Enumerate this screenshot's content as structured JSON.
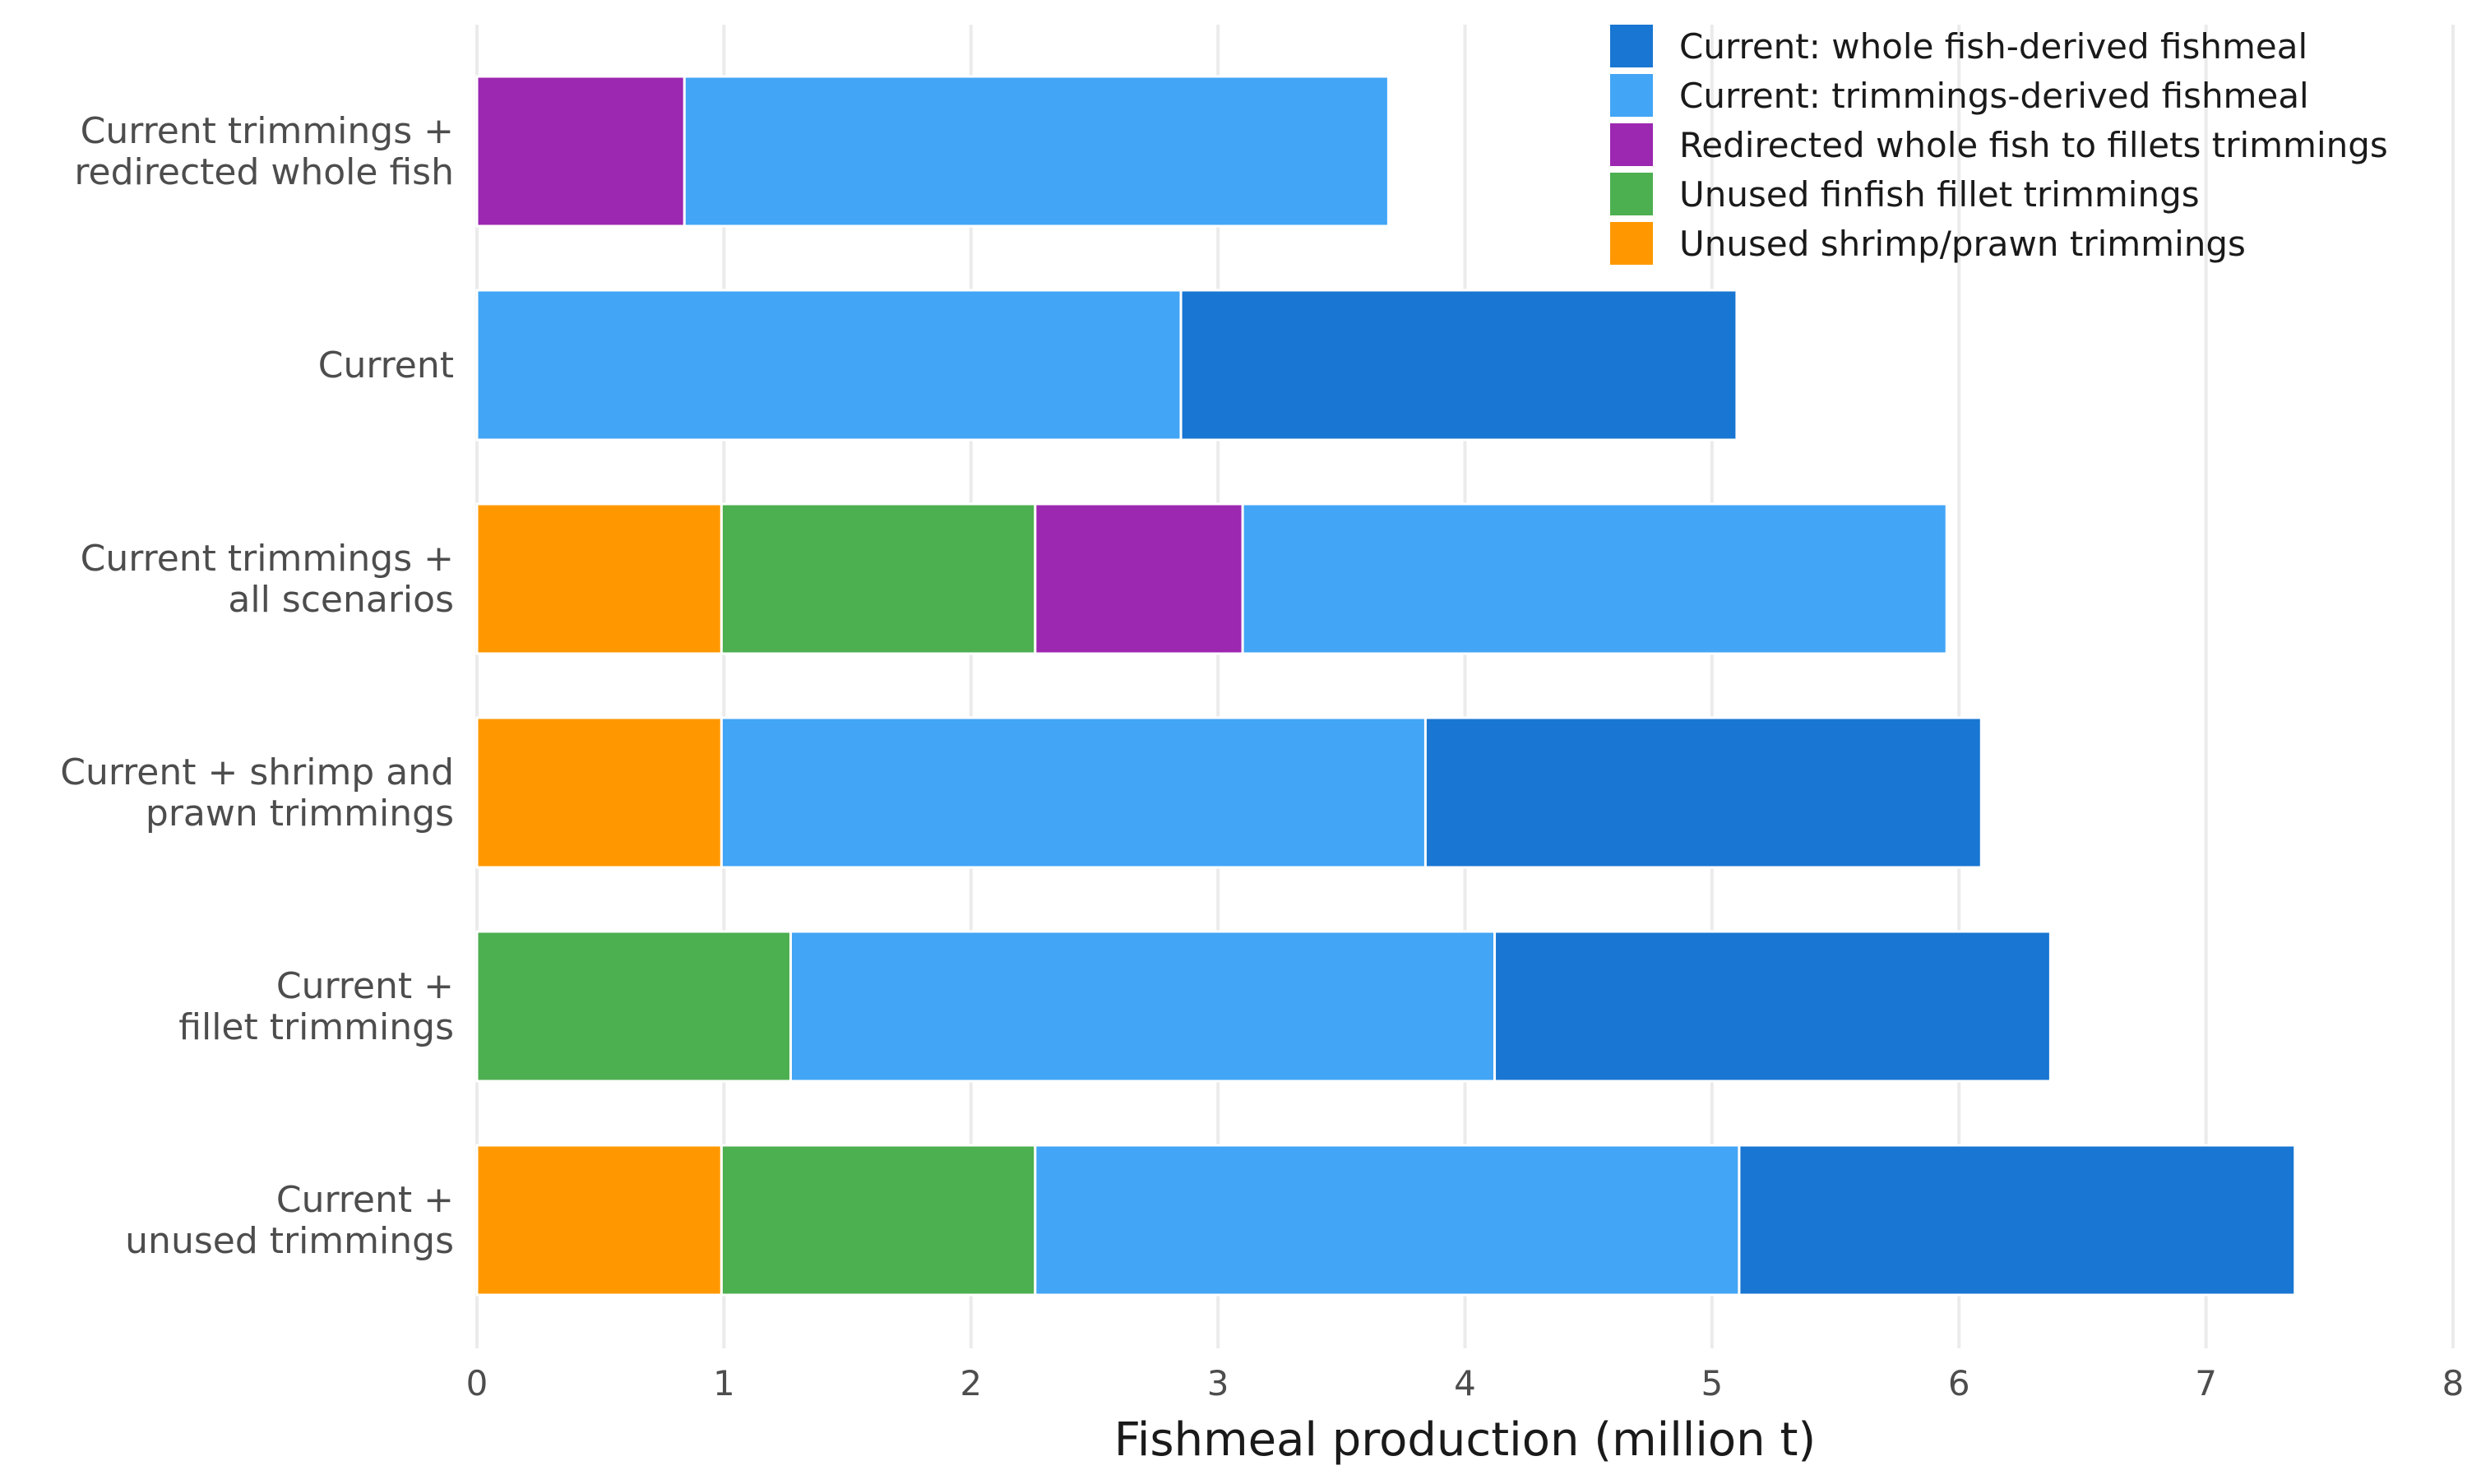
{
  "chart_data": {
    "type": "bar",
    "orientation": "horizontal",
    "stacked": true,
    "xlabel": "Fishmeal production (million t)",
    "ylabel": "",
    "xlim": [
      0,
      8
    ],
    "xticks": [
      "0",
      "1",
      "2",
      "3",
      "4",
      "5",
      "6",
      "7",
      "8"
    ],
    "grid": "vertical",
    "legend_position": "top-right",
    "categories": [
      [
        "Current trimmings +",
        "redirected whole fish"
      ],
      [
        "Current"
      ],
      [
        "Current trimmings +",
        "all scenarios"
      ],
      [
        "Current + shrimp and",
        "prawn trimmings"
      ],
      [
        "Current +",
        "fillet trimmings"
      ],
      [
        "Current +",
        "unused trimmings"
      ]
    ],
    "series": [
      {
        "name": "Unused shrimp/prawn trimmings",
        "color": "#ff9800",
        "values": [
          0,
          0,
          0.99,
          0.99,
          0,
          0.99
        ]
      },
      {
        "name": "Unused finfish fillet trimmings",
        "color": "#4caf50",
        "values": [
          0,
          0,
          1.27,
          0,
          1.27,
          1.27
        ]
      },
      {
        "name": "Redirected whole fish to fillets trimmings",
        "color": "#9c27b0",
        "values": [
          0.84,
          0,
          0.84,
          0,
          0,
          0
        ]
      },
      {
        "name": "Current: trimmings-derived fishmeal",
        "color": "#42a5f5",
        "values": [
          2.85,
          2.85,
          2.85,
          2.85,
          2.85,
          2.85
        ]
      },
      {
        "name": "Current: whole fish-derived fishmeal",
        "color": "#1976d2",
        "values": [
          0,
          2.25,
          0,
          2.25,
          2.25,
          2.25
        ]
      }
    ],
    "legend_order": [
      "Current: whole fish-derived fishmeal",
      "Current: trimmings-derived fishmeal",
      "Redirected whole fish to fillets trimmings",
      "Unused finfish fillet trimmings",
      "Unused shrimp/prawn trimmings"
    ]
  }
}
